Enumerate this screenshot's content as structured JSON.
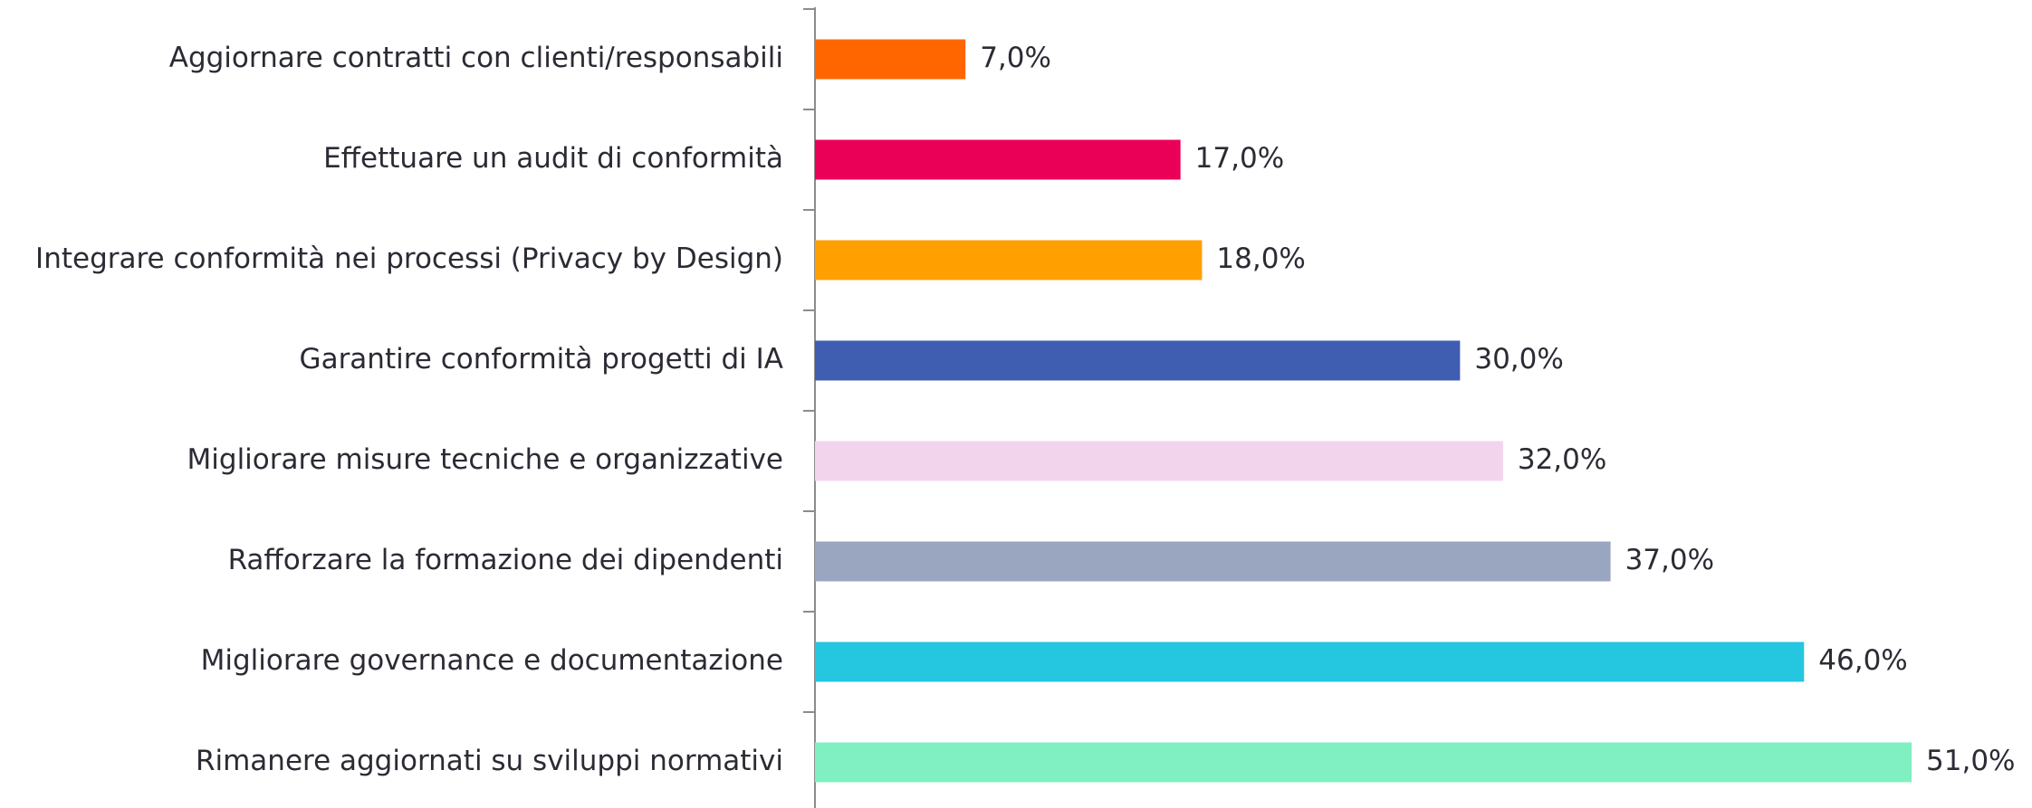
{
  "chart_data": {
    "type": "bar",
    "orientation": "horizontal",
    "categories": [
      "Aggiornare contratti con clienti/responsabili",
      "Effettuare un audit di conformità",
      "Integrare conformità nei processi (Privacy by Design)",
      "Garantire conformità progetti di IA",
      "Migliorare misure tecniche e organizzative",
      "Rafforzare la formazione dei dipendenti",
      "Migliorare governance e documentazione",
      "Rimanere aggiornati su sviluppi normativi"
    ],
    "values": [
      7,
      17,
      18,
      30,
      32,
      37,
      46,
      51
    ],
    "value_labels": [
      "7,0%",
      "17,0%",
      "18,0%",
      "30,0%",
      "32,0%",
      "37,0%",
      "46,0%",
      "51,0%"
    ],
    "colors": [
      "#ff6600",
      "#eb0058",
      "#ffa000",
      "#3f5eb1",
      "#f2d4ec",
      "#9aa5c0",
      "#25c6e0",
      "#80f0c2"
    ],
    "xlim": [
      0,
      55
    ],
    "grid": false
  }
}
